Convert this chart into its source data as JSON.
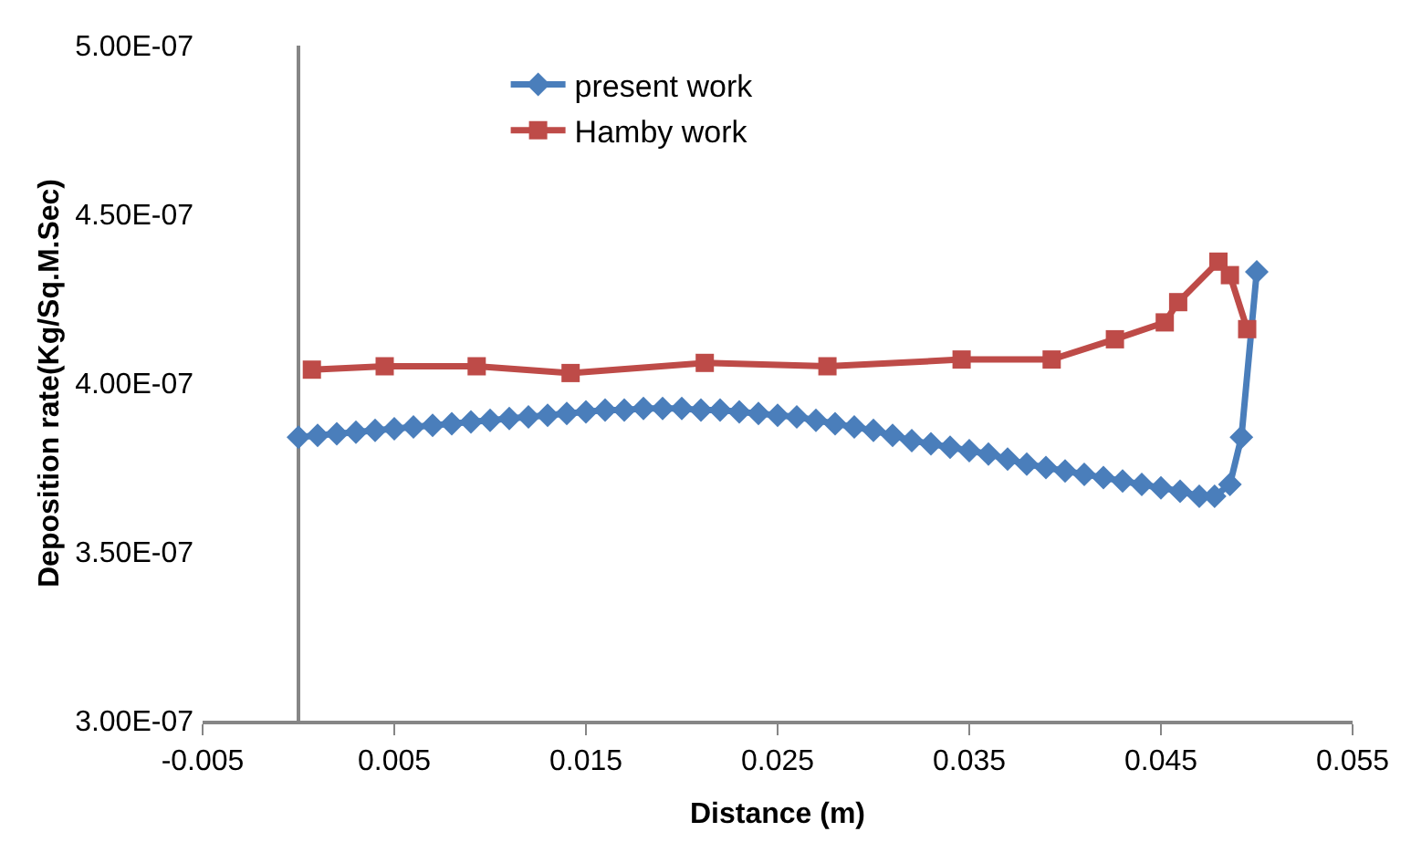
{
  "chart_data": {
    "type": "line",
    "xlabel": "Distance (m)",
    "ylabel": "Deposition rate(Kg/Sq.M.Sec)",
    "xlim": [
      -0.005,
      0.055
    ],
    "xticks": [
      -0.005,
      0.005,
      0.015,
      0.025,
      0.035,
      0.045,
      0.055
    ],
    "ylim": [
      3e-07,
      5e-07
    ],
    "yticks": [
      {
        "value": 3e-07,
        "label": "3.00E-07"
      },
      {
        "value": 3.5e-07,
        "label": "3.50E-07"
      },
      {
        "value": 4e-07,
        "label": "4.00E-07"
      },
      {
        "value": 4.5e-07,
        "label": "4.50E-07"
      },
      {
        "value": 5e-07,
        "label": "5.00E-07"
      }
    ],
    "legend": "top",
    "series": [
      {
        "name": "present work",
        "color": "#4a7ebb",
        "marker": "diamond",
        "x": [
          0,
          0.001,
          0.002,
          0.003,
          0.004,
          0.005,
          0.006,
          0.007,
          0.008,
          0.009,
          0.01,
          0.011,
          0.012,
          0.013,
          0.014,
          0.015,
          0.016,
          0.017,
          0.018,
          0.019,
          0.02,
          0.021,
          0.022,
          0.023,
          0.024,
          0.025,
          0.026,
          0.027,
          0.028,
          0.029,
          0.03,
          0.031,
          0.032,
          0.033,
          0.034,
          0.035,
          0.036,
          0.037,
          0.038,
          0.039,
          0.04,
          0.041,
          0.042,
          0.043,
          0.044,
          0.045,
          0.046,
          0.047,
          0.0478,
          0.0486,
          0.0492,
          0.05
        ],
        "values": [
          3.84e-07,
          3.845e-07,
          3.85e-07,
          3.855e-07,
          3.86e-07,
          3.865e-07,
          3.87e-07,
          3.875e-07,
          3.88e-07,
          3.885e-07,
          3.89e-07,
          3.895e-07,
          3.9e-07,
          3.905e-07,
          3.91e-07,
          3.915e-07,
          3.92e-07,
          3.92e-07,
          3.925e-07,
          3.925e-07,
          3.925e-07,
          3.92e-07,
          3.92e-07,
          3.915e-07,
          3.91e-07,
          3.905e-07,
          3.9e-07,
          3.89e-07,
          3.88e-07,
          3.87e-07,
          3.86e-07,
          3.845e-07,
          3.83e-07,
          3.82e-07,
          3.81e-07,
          3.8e-07,
          3.79e-07,
          3.775e-07,
          3.76e-07,
          3.75e-07,
          3.74e-07,
          3.73e-07,
          3.72e-07,
          3.71e-07,
          3.7e-07,
          3.69e-07,
          3.68e-07,
          3.665e-07,
          3.665e-07,
          3.7e-07,
          3.84e-07,
          4.33e-07
        ]
      },
      {
        "name": "Hamby work",
        "color": "#be4b48",
        "marker": "square",
        "x": [
          0.0007,
          0.0045,
          0.0093,
          0.0142,
          0.0212,
          0.0276,
          0.0346,
          0.0393,
          0.0426,
          0.0452,
          0.0459,
          0.048,
          0.0486,
          0.0495
        ],
        "values": [
          4.04e-07,
          4.05e-07,
          4.05e-07,
          4.03e-07,
          4.06e-07,
          4.05e-07,
          4.07e-07,
          4.07e-07,
          4.13e-07,
          4.18e-07,
          4.24e-07,
          4.36e-07,
          4.32e-07,
          4.16e-07
        ]
      }
    ]
  }
}
